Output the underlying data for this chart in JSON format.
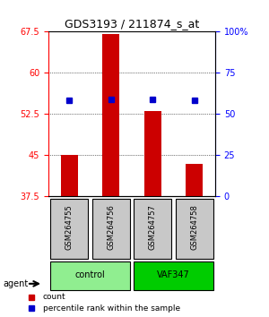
{
  "title": "GDS3193 / 211874_s_at",
  "samples": [
    "GSM264755",
    "GSM264756",
    "GSM264757",
    "GSM264758"
  ],
  "groups": [
    "control",
    "control",
    "VAF347",
    "VAF347"
  ],
  "group_labels": [
    "control",
    "VAF347"
  ],
  "group_colors": [
    "#90EE90",
    "#00CC00"
  ],
  "count_values": [
    45.0,
    67.0,
    53.0,
    43.5
  ],
  "percentile_values": [
    58.5,
    59.2,
    58.8,
    58.4
  ],
  "count_base": 37.5,
  "ylim_left": [
    37.5,
    67.5
  ],
  "ylim_right": [
    0,
    100
  ],
  "yticks_left": [
    37.5,
    45.0,
    52.5,
    60.0,
    67.5
  ],
  "ytick_labels_left": [
    "37.5",
    "45",
    "52.5",
    "60",
    "67.5"
  ],
  "yticks_right_vals": [
    37.5,
    45.0,
    52.5,
    60.0,
    67.5
  ],
  "ytick_labels_right": [
    "0",
    "25",
    "50",
    "75",
    "100%"
  ],
  "bar_color": "#CC0000",
  "dot_color": "#0000CC",
  "background_color": "#ffffff",
  "plot_bg_color": "#ffffff",
  "grid_color": "#000000",
  "agent_label": "agent",
  "legend_count_label": "count",
  "legend_pct_label": "percentile rank within the sample"
}
